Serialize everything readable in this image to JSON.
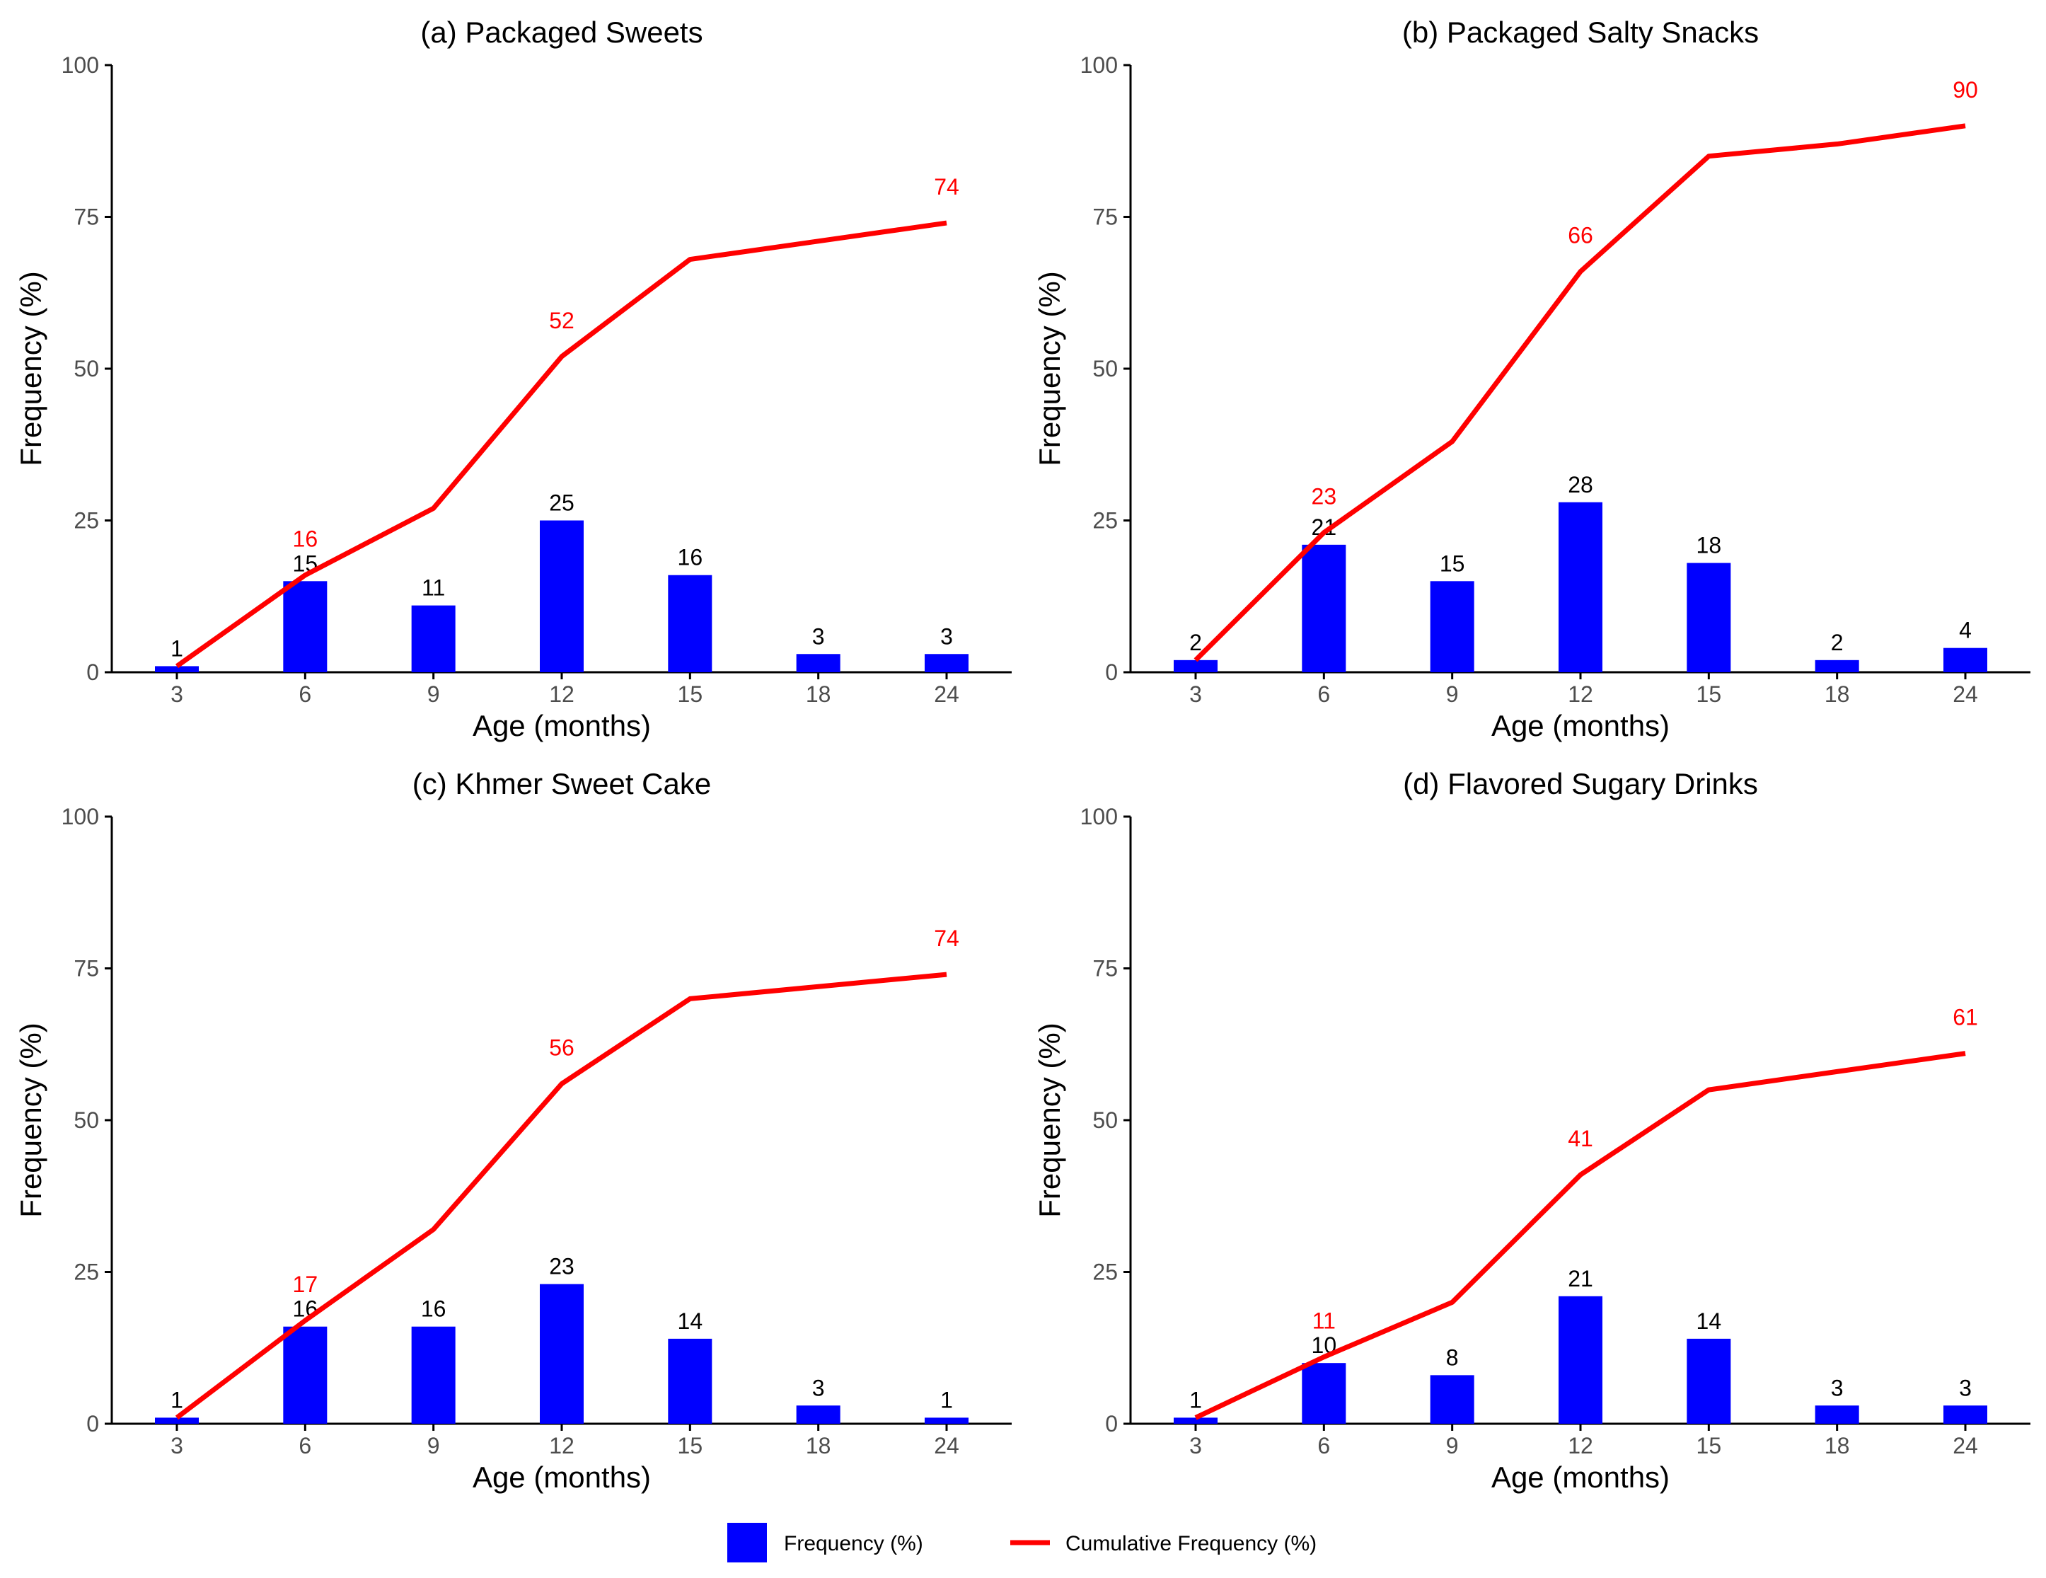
{
  "colors": {
    "bar": "#0000ff",
    "line": "#ff0000",
    "axis": "#000000",
    "tick_text": "#4d4d4d"
  },
  "legend": {
    "frequency_label": "Frequency (%)",
    "cumulative_label": "Cumulative Frequency (%)",
    "placement": "bottom"
  },
  "chart_data": [
    {
      "type": "bar",
      "title": "(a) Packaged Sweets",
      "xlabel": "Age (months)",
      "ylabel": "Frequency (%)",
      "categories": [
        "3",
        "6",
        "9",
        "12",
        "15",
        "18",
        "24"
      ],
      "ylim": [
        0,
        100
      ],
      "yticks": [
        0,
        25,
        50,
        75,
        100
      ],
      "series": [
        {
          "name": "Frequency (%)",
          "kind": "bar",
          "values": [
            1,
            15,
            11,
            25,
            16,
            3,
            3
          ]
        },
        {
          "name": "Cumulative Frequency (%)",
          "kind": "line",
          "values": [
            1,
            16,
            27,
            52,
            68,
            71,
            74
          ]
        }
      ],
      "labeled_cumulative": [
        1,
        3,
        6
      ]
    },
    {
      "type": "bar",
      "title": "(b) Packaged Salty Snacks",
      "xlabel": "Age (months)",
      "ylabel": "Frequency (%)",
      "categories": [
        "3",
        "6",
        "9",
        "12",
        "15",
        "18",
        "24"
      ],
      "ylim": [
        0,
        100
      ],
      "yticks": [
        0,
        25,
        50,
        75,
        100
      ],
      "series": [
        {
          "name": "Frequency (%)",
          "kind": "bar",
          "values": [
            2,
            21,
            15,
            28,
            18,
            2,
            4
          ]
        },
        {
          "name": "Cumulative Frequency (%)",
          "kind": "line",
          "values": [
            2,
            23,
            38,
            66,
            85,
            87,
            90
          ]
        }
      ],
      "labeled_cumulative": [
        1,
        3,
        6
      ]
    },
    {
      "type": "bar",
      "title": "(c) Khmer Sweet Cake",
      "xlabel": "Age (months)",
      "ylabel": "Frequency (%)",
      "categories": [
        "3",
        "6",
        "9",
        "12",
        "15",
        "18",
        "24"
      ],
      "ylim": [
        0,
        100
      ],
      "yticks": [
        0,
        25,
        50,
        75,
        100
      ],
      "series": [
        {
          "name": "Frequency (%)",
          "kind": "bar",
          "values": [
            1,
            16,
            16,
            23,
            14,
            3,
            1
          ]
        },
        {
          "name": "Cumulative Frequency (%)",
          "kind": "line",
          "values": [
            1,
            17,
            32,
            56,
            70,
            72,
            74
          ]
        }
      ],
      "labeled_cumulative": [
        1,
        3,
        6
      ]
    },
    {
      "type": "bar",
      "title": "(d) Flavored Sugary Drinks",
      "xlabel": "Age (months)",
      "ylabel": "Frequency (%)",
      "categories": [
        "3",
        "6",
        "9",
        "12",
        "15",
        "18",
        "24"
      ],
      "ylim": [
        0,
        100
      ],
      "yticks": [
        0,
        25,
        50,
        75,
        100
      ],
      "series": [
        {
          "name": "Frequency (%)",
          "kind": "bar",
          "values": [
            1,
            10,
            8,
            21,
            14,
            3,
            3
          ]
        },
        {
          "name": "Cumulative Frequency (%)",
          "kind": "line",
          "values": [
            1,
            11,
            20,
            41,
            55,
            58,
            61
          ]
        }
      ],
      "labeled_cumulative": [
        1,
        3,
        6
      ]
    }
  ]
}
